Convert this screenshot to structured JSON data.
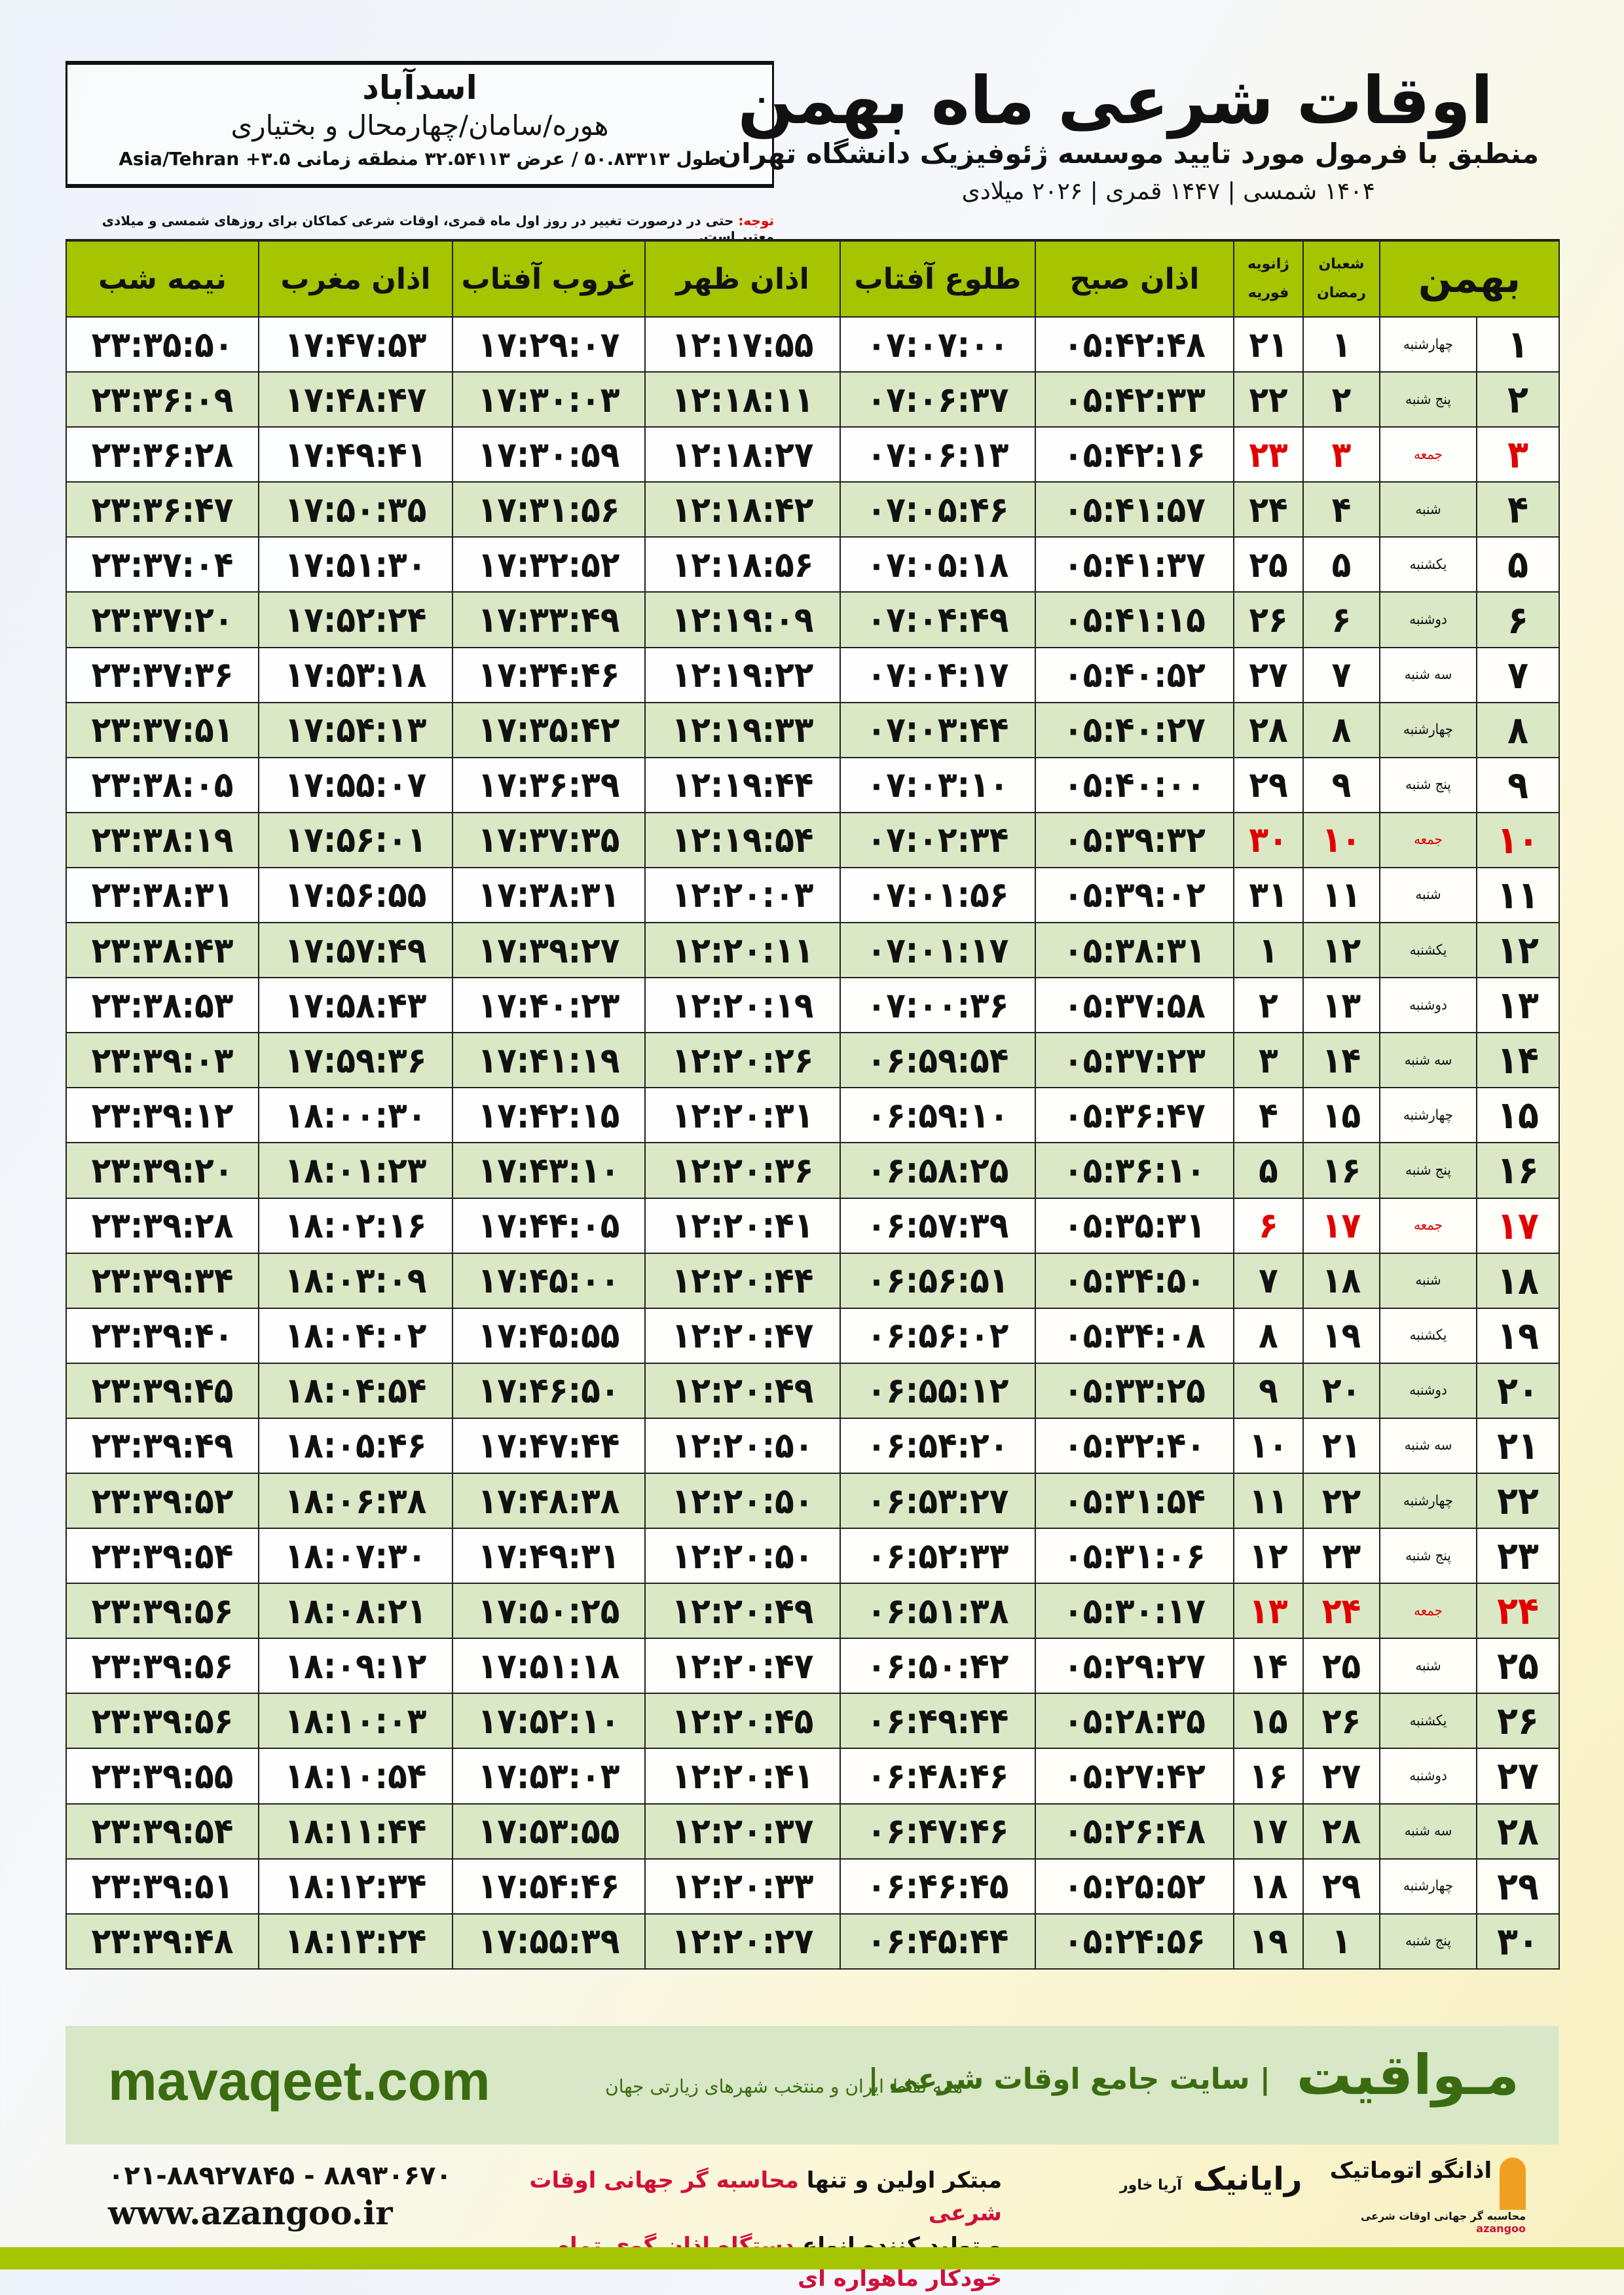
{
  "location": {
    "city": "اسدآباد",
    "region": "هوره/سامان/چهارمحال و بختیاری",
    "coords": "طول ۵۰.۸۳۳۱۳ / عرض ۳۲.۵۴۱۱۳ منطقه زمانی ۳.۵+ Asia/Tehran"
  },
  "header": {
    "title": "اوقات شرعی ماه بهمن",
    "subtitle": "منطبق با فرمول مورد تایید موسسه ژئوفیزیک دانشگاه تهران",
    "dates": "۱۴۰۴ شمسی | ۱۴۴۷ قمری | ۲۰۲۶ میلادی"
  },
  "note": {
    "label": "توجه:",
    "text": " حتی در درصورت تغییر در روز اول ماه قمری، اوقات شرعی کماکان برای روزهای شمسی و میلادی معتبر است."
  },
  "columns": {
    "month": "بهمن",
    "hijri_top": "شعبان",
    "hijri_bottom": "رمضان",
    "greg_top": "ژانویه",
    "greg_bottom": "فوریه",
    "fajr": "اذان صبح",
    "sunrise": "طلوع آفتاب",
    "dhuhr": "اذان ظهر",
    "sunset": "غروب آفتاب",
    "maghrib": "اذان مغرب",
    "midnight": "نیمه شب"
  },
  "rows": [
    [
      "۱",
      "چهارشنبه",
      "۱",
      "۲۱",
      "۰۵:۴۲:۴۸",
      "۰۷:۰۷:۰۰",
      "۱۲:۱۷:۵۵",
      "۱۷:۲۹:۰۷",
      "۱۷:۴۷:۵۳",
      "۲۳:۳۵:۵۰"
    ],
    [
      "۲",
      "پنج شنبه",
      "۲",
      "۲۲",
      "۰۵:۴۲:۳۳",
      "۰۷:۰۶:۳۷",
      "۱۲:۱۸:۱۱",
      "۱۷:۳۰:۰۳",
      "۱۷:۴۸:۴۷",
      "۲۳:۳۶:۰۹"
    ],
    [
      "۳",
      "جمعه",
      "۳",
      "۲۳",
      "۰۵:۴۲:۱۶",
      "۰۷:۰۶:۱۳",
      "۱۲:۱۸:۲۷",
      "۱۷:۳۰:۵۹",
      "۱۷:۴۹:۴۱",
      "۲۳:۳۶:۲۸"
    ],
    [
      "۴",
      "شنبه",
      "۴",
      "۲۴",
      "۰۵:۴۱:۵۷",
      "۰۷:۰۵:۴۶",
      "۱۲:۱۸:۴۲",
      "۱۷:۳۱:۵۶",
      "۱۷:۵۰:۳۵",
      "۲۳:۳۶:۴۷"
    ],
    [
      "۵",
      "یکشنبه",
      "۵",
      "۲۵",
      "۰۵:۴۱:۳۷",
      "۰۷:۰۵:۱۸",
      "۱۲:۱۸:۵۶",
      "۱۷:۳۲:۵۲",
      "۱۷:۵۱:۳۰",
      "۲۳:۳۷:۰۴"
    ],
    [
      "۶",
      "دوشنبه",
      "۶",
      "۲۶",
      "۰۵:۴۱:۱۵",
      "۰۷:۰۴:۴۹",
      "۱۲:۱۹:۰۹",
      "۱۷:۳۳:۴۹",
      "۱۷:۵۲:۲۴",
      "۲۳:۳۷:۲۰"
    ],
    [
      "۷",
      "سه شنبه",
      "۷",
      "۲۷",
      "۰۵:۴۰:۵۲",
      "۰۷:۰۴:۱۷",
      "۱۲:۱۹:۲۲",
      "۱۷:۳۴:۴۶",
      "۱۷:۵۳:۱۸",
      "۲۳:۳۷:۳۶"
    ],
    [
      "۸",
      "چهارشنبه",
      "۸",
      "۲۸",
      "۰۵:۴۰:۲۷",
      "۰۷:۰۳:۴۴",
      "۱۲:۱۹:۳۳",
      "۱۷:۳۵:۴۲",
      "۱۷:۵۴:۱۳",
      "۲۳:۳۷:۵۱"
    ],
    [
      "۹",
      "پنج شنبه",
      "۹",
      "۲۹",
      "۰۵:۴۰:۰۰",
      "۰۷:۰۳:۱۰",
      "۱۲:۱۹:۴۴",
      "۱۷:۳۶:۳۹",
      "۱۷:۵۵:۰۷",
      "۲۳:۳۸:۰۵"
    ],
    [
      "۱۰",
      "جمعه",
      "۱۰",
      "۳۰",
      "۰۵:۳۹:۳۲",
      "۰۷:۰۲:۳۴",
      "۱۲:۱۹:۵۴",
      "۱۷:۳۷:۳۵",
      "۱۷:۵۶:۰۱",
      "۲۳:۳۸:۱۹"
    ],
    [
      "۱۱",
      "شنبه",
      "۱۱",
      "۳۱",
      "۰۵:۳۹:۰۲",
      "۰۷:۰۱:۵۶",
      "۱۲:۲۰:۰۳",
      "۱۷:۳۸:۳۱",
      "۱۷:۵۶:۵۵",
      "۲۳:۳۸:۳۱"
    ],
    [
      "۱۲",
      "یکشنبه",
      "۱۲",
      "۱",
      "۰۵:۳۸:۳۱",
      "۰۷:۰۱:۱۷",
      "۱۲:۲۰:۱۱",
      "۱۷:۳۹:۲۷",
      "۱۷:۵۷:۴۹",
      "۲۳:۳۸:۴۳"
    ],
    [
      "۱۳",
      "دوشنبه",
      "۱۳",
      "۲",
      "۰۵:۳۷:۵۸",
      "۰۷:۰۰:۳۶",
      "۱۲:۲۰:۱۹",
      "۱۷:۴۰:۲۳",
      "۱۷:۵۸:۴۳",
      "۲۳:۳۸:۵۳"
    ],
    [
      "۱۴",
      "سه شنبه",
      "۱۴",
      "۳",
      "۰۵:۳۷:۲۳",
      "۰۶:۵۹:۵۴",
      "۱۲:۲۰:۲۶",
      "۱۷:۴۱:۱۹",
      "۱۷:۵۹:۳۶",
      "۲۳:۳۹:۰۳"
    ],
    [
      "۱۵",
      "چهارشنبه",
      "۱۵",
      "۴",
      "۰۵:۳۶:۴۷",
      "۰۶:۵۹:۱۰",
      "۱۲:۲۰:۳۱",
      "۱۷:۴۲:۱۵",
      "۱۸:۰۰:۳۰",
      "۲۳:۳۹:۱۲"
    ],
    [
      "۱۶",
      "پنج شنبه",
      "۱۶",
      "۵",
      "۰۵:۳۶:۱۰",
      "۰۶:۵۸:۲۵",
      "۱۲:۲۰:۳۶",
      "۱۷:۴۳:۱۰",
      "۱۸:۰۱:۲۳",
      "۲۳:۳۹:۲۰"
    ],
    [
      "۱۷",
      "جمعه",
      "۱۷",
      "۶",
      "۰۵:۳۵:۳۱",
      "۰۶:۵۷:۳۹",
      "۱۲:۲۰:۴۱",
      "۱۷:۴۴:۰۵",
      "۱۸:۰۲:۱۶",
      "۲۳:۳۹:۲۸"
    ],
    [
      "۱۸",
      "شنبه",
      "۱۸",
      "۷",
      "۰۵:۳۴:۵۰",
      "۰۶:۵۶:۵۱",
      "۱۲:۲۰:۴۴",
      "۱۷:۴۵:۰۰",
      "۱۸:۰۳:۰۹",
      "۲۳:۳۹:۳۴"
    ],
    [
      "۱۹",
      "یکشنبه",
      "۱۹",
      "۸",
      "۰۵:۳۴:۰۸",
      "۰۶:۵۶:۰۲",
      "۱۲:۲۰:۴۷",
      "۱۷:۴۵:۵۵",
      "۱۸:۰۴:۰۲",
      "۲۳:۳۹:۴۰"
    ],
    [
      "۲۰",
      "دوشنبه",
      "۲۰",
      "۹",
      "۰۵:۳۳:۲۵",
      "۰۶:۵۵:۱۲",
      "۱۲:۲۰:۴۹",
      "۱۷:۴۶:۵۰",
      "۱۸:۰۴:۵۴",
      "۲۳:۳۹:۴۵"
    ],
    [
      "۲۱",
      "سه شنبه",
      "۲۱",
      "۱۰",
      "۰۵:۳۲:۴۰",
      "۰۶:۵۴:۲۰",
      "۱۲:۲۰:۵۰",
      "۱۷:۴۷:۴۴",
      "۱۸:۰۵:۴۶",
      "۲۳:۳۹:۴۹"
    ],
    [
      "۲۲",
      "چهارشنبه",
      "۲۲",
      "۱۱",
      "۰۵:۳۱:۵۴",
      "۰۶:۵۳:۲۷",
      "۱۲:۲۰:۵۰",
      "۱۷:۴۸:۳۸",
      "۱۸:۰۶:۳۸",
      "۲۳:۳۹:۵۲"
    ],
    [
      "۲۳",
      "پنج شنبه",
      "۲۳",
      "۱۲",
      "۰۵:۳۱:۰۶",
      "۰۶:۵۲:۳۳",
      "۱۲:۲۰:۵۰",
      "۱۷:۴۹:۳۱",
      "۱۸:۰۷:۳۰",
      "۲۳:۳۹:۵۴"
    ],
    [
      "۲۴",
      "جمعه",
      "۲۴",
      "۱۳",
      "۰۵:۳۰:۱۷",
      "۰۶:۵۱:۳۸",
      "۱۲:۲۰:۴۹",
      "۱۷:۵۰:۲۵",
      "۱۸:۰۸:۲۱",
      "۲۳:۳۹:۵۶"
    ],
    [
      "۲۵",
      "شنبه",
      "۲۵",
      "۱۴",
      "۰۵:۲۹:۲۷",
      "۰۶:۵۰:۴۲",
      "۱۲:۲۰:۴۷",
      "۱۷:۵۱:۱۸",
      "۱۸:۰۹:۱۲",
      "۲۳:۳۹:۵۶"
    ],
    [
      "۲۶",
      "یکشنبه",
      "۲۶",
      "۱۵",
      "۰۵:۲۸:۳۵",
      "۰۶:۴۹:۴۴",
      "۱۲:۲۰:۴۵",
      "۱۷:۵۲:۱۰",
      "۱۸:۱۰:۰۳",
      "۲۳:۳۹:۵۶"
    ],
    [
      "۲۷",
      "دوشنبه",
      "۲۷",
      "۱۶",
      "۰۵:۲۷:۴۲",
      "۰۶:۴۸:۴۶",
      "۱۲:۲۰:۴۱",
      "۱۷:۵۳:۰۳",
      "۱۸:۱۰:۵۴",
      "۲۳:۳۹:۵۵"
    ],
    [
      "۲۸",
      "سه شنبه",
      "۲۸",
      "۱۷",
      "۰۵:۲۶:۴۸",
      "۰۶:۴۷:۴۶",
      "۱۲:۲۰:۳۷",
      "۱۷:۵۳:۵۵",
      "۱۸:۱۱:۴۴",
      "۲۳:۳۹:۵۴"
    ],
    [
      "۲۹",
      "چهارشنبه",
      "۲۹",
      "۱۸",
      "۰۵:۲۵:۵۲",
      "۰۶:۴۶:۴۵",
      "۱۲:۲۰:۳۳",
      "۱۷:۵۴:۴۶",
      "۱۸:۱۲:۳۴",
      "۲۳:۳۹:۵۱"
    ],
    [
      "۳۰",
      "پنج شنبه",
      "۱",
      "۱۹",
      "۰۵:۲۴:۵۶",
      "۰۶:۴۵:۴۴",
      "۱۲:۲۰:۲۷",
      "۱۷:۵۵:۳۹",
      "۱۸:۱۳:۲۴",
      "۲۳:۳۹:۴۸"
    ]
  ],
  "holiday_rows": [
    3,
    10,
    17,
    24
  ],
  "colors": {
    "header_green": "#a6c400",
    "row_green": "#dbe8c6",
    "holiday_red": "#e00000",
    "brand_green": "#3a6b10"
  },
  "footer": {
    "site": "mavaqeet.com",
    "brand": "مـواقیت",
    "slogan": "| سایت جامع اوقات شرعی |",
    "tagline": "همه نقاط ایران و منتخب شهرهای زیارتی جهان",
    "phone": "۰۲۱-۸۸۹۲۷۸۴۵ - ۸۸۹۳۰۶۷۰",
    "www": "www.azangoo.ir",
    "promo1_a": "مبتکر اولین و تنها ",
    "promo1_b": "محاسبه گر جهانی اوقات شرعی",
    "promo2_a": "و تولید کننده انواع ",
    "promo2_b": "دستگاه اذان گوی تمام خودکار ماهواره ای",
    "rayanik": "رایانیک",
    "rayanik_sub": "آریا خاور",
    "azangoo_name": "اذانگو اتوماتیک",
    "azangoo_sub": "محاسبه گر جهانی اوقات شرعی",
    "azangoo_en": "azangoo"
  }
}
